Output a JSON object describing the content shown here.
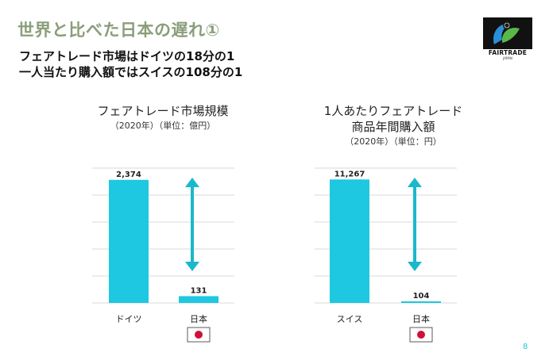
{
  "slide": {
    "title": "世界と比べた日本の遅れ①",
    "subtitle_line1": "フェアトレード市場はドイツの18分の1",
    "subtitle_line2": "一人当たり購入額ではスイスの108分の1",
    "page_number": "8"
  },
  "logo": {
    "name": "FAIRTRADE",
    "subtext": "JAPAN"
  },
  "colors": {
    "bar": "#1ec8e0",
    "arrow": "#1ab8cc",
    "title": "#8a9e7a",
    "grid": "#d9d9d9",
    "flag_red": "#d0103a"
  },
  "chart_data": [
    {
      "type": "bar",
      "title_lines": [
        "フェアトレード市場規模"
      ],
      "subtitle": "（2020年）（単位：億円）",
      "categories": [
        "ドイツ",
        "日本"
      ],
      "values": [
        2374,
        131
      ],
      "value_labels": [
        "2,374",
        "131"
      ],
      "ylim": [
        0,
        2600
      ],
      "grid": true,
      "annotation": "double-headed arrow between bars",
      "flag_under": "日本"
    },
    {
      "type": "bar",
      "title_lines": [
        "1人あたりフェアトレード",
        "商品年間購入額"
      ],
      "subtitle": "（2020年）（単位：円）",
      "categories": [
        "スイス",
        "日本"
      ],
      "values": [
        11267,
        104
      ],
      "value_labels": [
        "11,267",
        "104"
      ],
      "ylim": [
        0,
        12300
      ],
      "grid": true,
      "annotation": "double-headed arrow between bars",
      "flag_under": "日本"
    }
  ]
}
